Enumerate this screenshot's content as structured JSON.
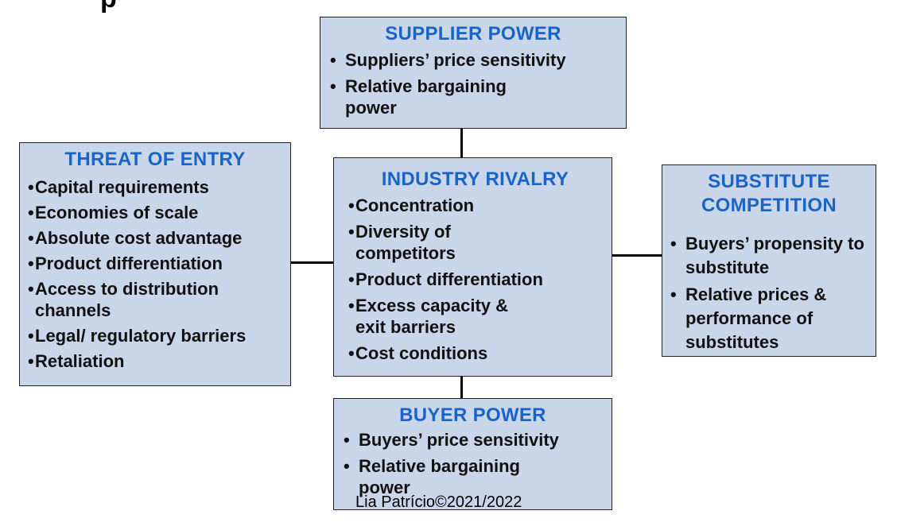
{
  "heading_partial": "p",
  "supplier_power": {
    "title": "SUPPLIER POWER",
    "bullet": "•",
    "items": [
      "Suppliers’ price sensitivity",
      "Relative bargaining power"
    ]
  },
  "threat_of_entry": {
    "title": "THREAT OF ENTRY",
    "bullet": "•",
    "items": [
      "Capital requirements",
      "Economies of scale",
      "Absolute cost advantage",
      "Product differentiation",
      "Access to distribution channels",
      "Legal/ regulatory barriers",
      "Retaliation"
    ]
  },
  "industry_rivalry": {
    "title": "INDUSTRY RIVALRY",
    "bullet": "•",
    "items": [
      "Concentration",
      "Diversity of competitors",
      "Product differentiation",
      "Excess capacity & exit barriers",
      "Cost conditions"
    ]
  },
  "substitute_competition": {
    "title": "SUBSTITUTE COMPETITION",
    "bullet": "•",
    "items": [
      "Buyers’ propensity to substitute",
      "Relative prices & performance of substitutes"
    ]
  },
  "buyer_power": {
    "title": "BUYER POWER",
    "bullet": "•",
    "items": [
      "Buyers’ price sensitivity",
      "Relative bargaining power"
    ]
  },
  "footer": "Lia Patrício©2021/2022",
  "colors": {
    "box_fill": "#c9d6ea",
    "title_blue": "#1a63c7"
  }
}
